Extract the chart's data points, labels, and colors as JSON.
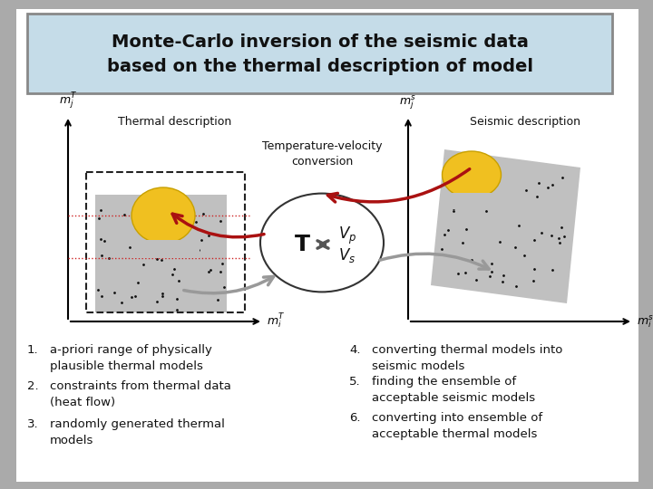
{
  "title_line1": "Monte-Carlo inversion of the seismic data",
  "title_line2": "based on the thermal description of model",
  "title_bg_color": "#c5dce8",
  "title_border_color": "#888888",
  "slide_bg_color": "#aaaaaa",
  "white_bg": "#ffffff",
  "items_left": [
    [
      "1.",
      "a-priori range of physically\nplausible thermal models"
    ],
    [
      "2.",
      "constraints from thermal data\n(heat flow)"
    ],
    [
      "3.",
      "randomly generated thermal\nmodels"
    ]
  ],
  "items_right": [
    [
      "4.",
      "converting thermal models into\nseismic models"
    ],
    [
      "5.",
      "finding the ensemble of\nacceptable seismic models"
    ],
    [
      "6.",
      "converting into ensemble of\nacceptable thermal models"
    ]
  ],
  "thermal_label": "Thermal description",
  "seismic_label": "Seismic description",
  "conversion_label": "Temperature-velocity\nconversion",
  "gray_fill": "#c0c0c0",
  "dashed_box_color": "#222222",
  "yellow_color": "#f0c020",
  "yellow_edge": "#c8a000",
  "red_arrow_color": "#aa1111",
  "gray_arrow_color": "#999999",
  "dot_color": "#111111",
  "circle_fill": "#ffffff",
  "circle_edge": "#333333"
}
